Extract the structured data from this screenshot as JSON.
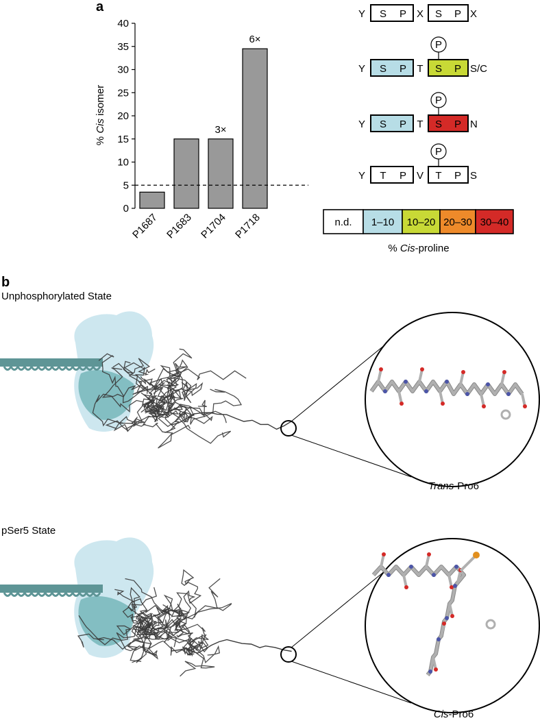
{
  "panel_a": {
    "label": "a",
    "chart_data": {
      "type": "bar",
      "categories": [
        "P1687",
        "P1683",
        "P1704",
        "P1718"
      ],
      "values": [
        3.5,
        15,
        15,
        34.5
      ],
      "annotations": [
        "",
        "",
        "3×",
        "6×"
      ],
      "title": "",
      "xlabel": "",
      "ylabel_prefix": "% ",
      "ylabel_italic": "Cis",
      "ylabel_suffix": " isomer",
      "ylim": [
        0,
        40
      ],
      "yticks": [
        0,
        5,
        10,
        15,
        20,
        25,
        30,
        35,
        40
      ],
      "reference_line": 5,
      "bar_color": "#999999"
    },
    "sequences": [
      {
        "tokens": [
          "Y",
          "S",
          "P",
          "X",
          "S",
          "P",
          "X"
        ],
        "box1_color": "#ffffff",
        "box2_color": "#ffffff",
        "phospho": false
      },
      {
        "tokens": [
          "Y",
          "S",
          "P",
          "T",
          "S",
          "P",
          "S/C"
        ],
        "box1_color": "#b7dde6",
        "box2_color": "#c8d936",
        "phospho": true
      },
      {
        "tokens": [
          "Y",
          "S",
          "P",
          "T",
          "S",
          "P",
          "N"
        ],
        "box1_color": "#b7dde6",
        "box2_color": "#d42a27",
        "phospho": true
      },
      {
        "tokens": [
          "Y",
          "T",
          "P",
          "V",
          "T",
          "P",
          "S"
        ],
        "box1_color": "#ffffff",
        "box2_color": "#ffffff",
        "phospho": true
      }
    ],
    "phospho_symbol": "P",
    "legend": {
      "items": [
        {
          "label": "n.d.",
          "color": "#ffffff"
        },
        {
          "label": "1–10",
          "color": "#b7dde6"
        },
        {
          "label": "10–20",
          "color": "#c8d936"
        },
        {
          "label": "20–30",
          "color": "#ee8a2a"
        },
        {
          "label": "30–40",
          "color": "#d42a27"
        }
      ],
      "caption_prefix": "% ",
      "caption_italic": "Cis",
      "caption_suffix": "-proline"
    }
  },
  "panel_b": {
    "label": "b",
    "states": [
      {
        "title": "Unphosphorylated State",
        "zoom_italic": "Trans",
        "zoom_suffix": "-Pro6"
      },
      {
        "title": "pSer5 State",
        "zoom_italic": "Cis",
        "zoom_suffix": "-Pro6"
      }
    ],
    "colors": {
      "enzyme_light": "#cde7ef",
      "enzyme_dark": "#6ab0b3",
      "dna": "#5e9596",
      "trace": "#3a3a3a",
      "stick": "#b0b0b0",
      "oxygen": "#d42a27",
      "nitrogen": "#4c55a8",
      "phosphorus": "#e2901f"
    }
  }
}
